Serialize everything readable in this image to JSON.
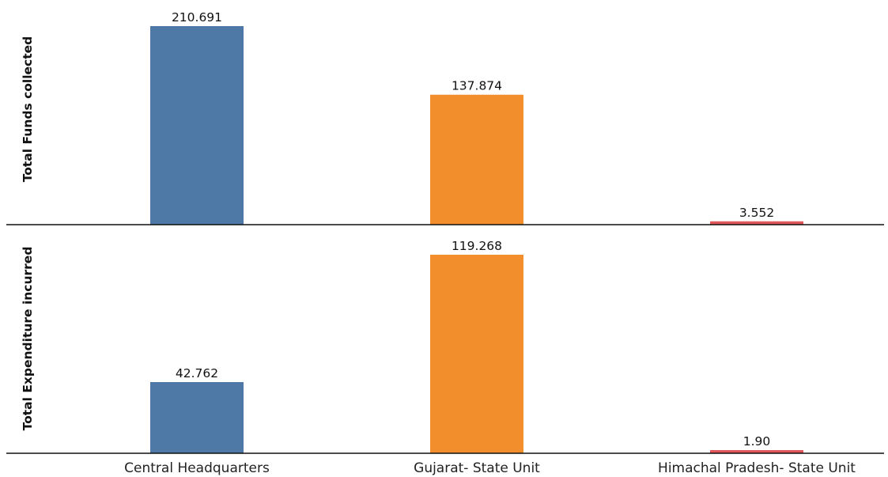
{
  "chart_data": {
    "type": "bar",
    "categories": [
      "Central Headquarters",
      "Gujarat- State Unit",
      "Himachal Pradesh- State Unit"
    ],
    "colors": {
      "Central Headquarters": "#4e79a7",
      "Gujarat- State Unit": "#f28e2b",
      "Himachal Pradesh- State Unit": "#e15759"
    },
    "grid": false,
    "legend": "none",
    "panels": [
      {
        "ylabel": "Total Funds collected",
        "values": [
          210.691,
          137.874,
          3.552
        ],
        "labels": [
          "210.691",
          "137.874",
          "3.552"
        ],
        "ylim": [
          0,
          210.691
        ]
      },
      {
        "ylabel": "Total Expenditure incurred",
        "values": [
          42.762,
          119.268,
          1.9
        ],
        "labels": [
          "42.762",
          "119.268",
          "1.90"
        ],
        "ylim": [
          0,
          119.268
        ]
      }
    ]
  }
}
